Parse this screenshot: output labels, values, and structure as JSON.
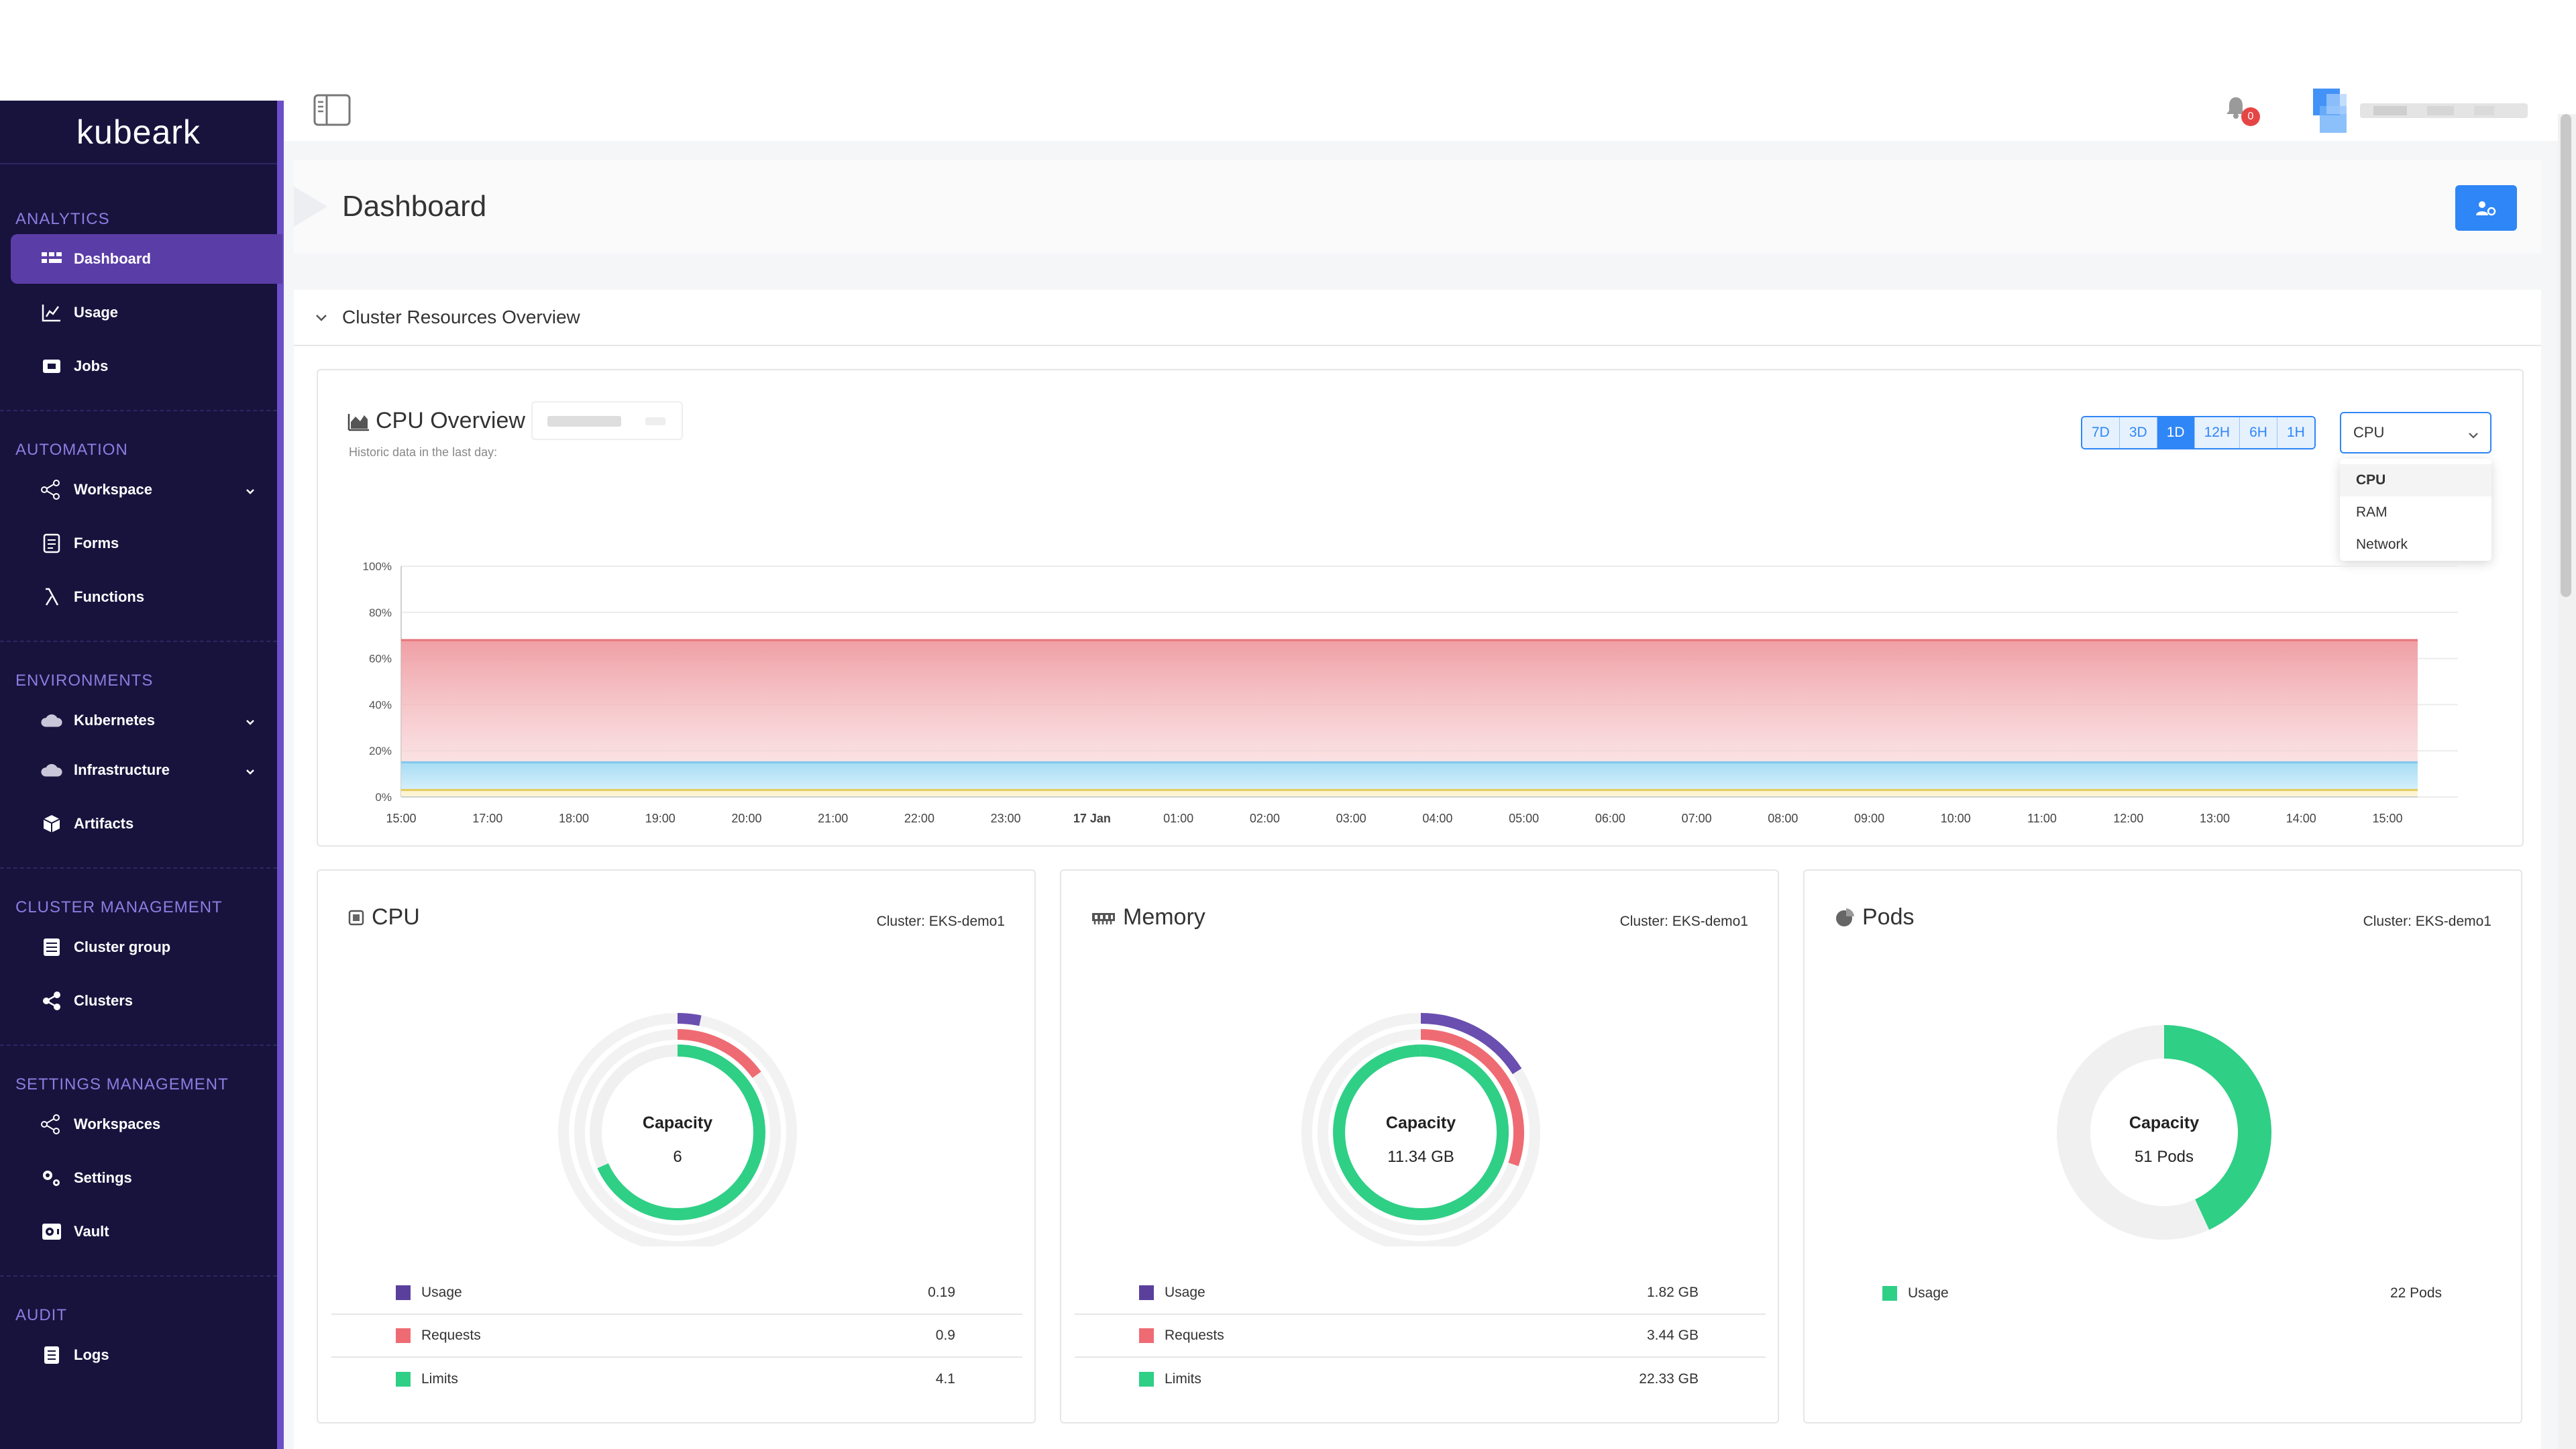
{
  "app": {
    "brand": "kubeark"
  },
  "sidebar": {
    "sections": [
      {
        "title": "ANALYTICS",
        "items": [
          {
            "label": "Dashboard",
            "icon": "dashboard-icon",
            "active": true
          },
          {
            "label": "Usage",
            "icon": "usage-chart-icon"
          },
          {
            "label": "Jobs",
            "icon": "jobs-icon"
          }
        ]
      },
      {
        "title": "AUTOMATION",
        "items": [
          {
            "label": "Workspace",
            "icon": "workspace-icon",
            "expandable": true
          },
          {
            "label": "Forms",
            "icon": "forms-icon"
          },
          {
            "label": "Functions",
            "icon": "lambda-icon"
          }
        ]
      },
      {
        "title": "ENVIRONMENTS",
        "items": [
          {
            "label": "Kubernetes",
            "icon": "cloud-icon",
            "expandable": true
          },
          {
            "label": "Infrastructure",
            "icon": "cloud-icon",
            "expandable": true
          },
          {
            "label": "Artifacts",
            "icon": "box-icon"
          }
        ]
      },
      {
        "title": "CLUSTER MANAGEMENT",
        "items": [
          {
            "label": "Cluster group",
            "icon": "cluster-group-icon"
          },
          {
            "label": "Clusters",
            "icon": "share-nodes-icon"
          }
        ]
      },
      {
        "title": "SETTINGS MANAGEMENT",
        "items": [
          {
            "label": "Workspaces",
            "icon": "workspace-icon"
          },
          {
            "label": "Settings",
            "icon": "gears-icon"
          },
          {
            "label": "Vault",
            "icon": "vault-icon"
          }
        ]
      },
      {
        "title": "AUDIT",
        "items": [
          {
            "label": "Logs",
            "icon": "logs-icon"
          }
        ]
      }
    ]
  },
  "topbar": {
    "notification_count": "0"
  },
  "page": {
    "title": "Dashboard"
  },
  "section": {
    "title": "Cluster Resources Overview"
  },
  "cpu_overview": {
    "title": "CPU Overview",
    "subtitle": "Historic data in the last day:",
    "ranges": [
      "7D",
      "3D",
      "1D",
      "12H",
      "6H",
      "1H"
    ],
    "active_range": "1D",
    "select": {
      "value": "CPU",
      "options": [
        "CPU",
        "RAM",
        "Network"
      ]
    }
  },
  "chart_data": {
    "type": "area",
    "title": "CPU Overview",
    "x": [
      "15:00",
      "17:00",
      "18:00",
      "19:00",
      "20:00",
      "21:00",
      "22:00",
      "23:00",
      "17 Jan",
      "01:00",
      "02:00",
      "03:00",
      "04:00",
      "05:00",
      "06:00",
      "07:00",
      "08:00",
      "09:00",
      "10:00",
      "11:00",
      "12:00",
      "13:00",
      "14:00",
      "15:00"
    ],
    "y_ticks": [
      "0%",
      "20%",
      "40%",
      "60%",
      "80%",
      "100%"
    ],
    "ylim": [
      0,
      100
    ],
    "series": [
      {
        "values": [
          68,
          68,
          68,
          68,
          68,
          68,
          68,
          68,
          68,
          68,
          68,
          68,
          68,
          68,
          68,
          68,
          68,
          68,
          68,
          68,
          68,
          68,
          68,
          68
        ],
        "color": "#e8737b"
      },
      {
        "values": [
          15,
          15,
          15,
          15,
          15,
          15,
          15,
          15,
          15,
          15,
          15,
          15,
          15,
          15,
          15,
          15,
          15,
          15,
          15,
          15,
          15,
          15,
          15,
          15
        ],
        "color": "#7fc8ec"
      },
      {
        "values": [
          3,
          3,
          3,
          3,
          3,
          3,
          3,
          3,
          3,
          3,
          3,
          3,
          3,
          3,
          3,
          3,
          3,
          3,
          3,
          3,
          3,
          3,
          3,
          3
        ],
        "color": "#e6cc5a"
      }
    ]
  },
  "cards": [
    {
      "title": "CPU",
      "icon": "chip-icon",
      "cluster": "Cluster: EKS-demo1",
      "capacity_label": "Capacity",
      "capacity_value": "6",
      "rings": {
        "usage": 0.032,
        "requests": 0.15,
        "limits": 0.683
      },
      "legend": [
        {
          "label": "Usage",
          "value": "0.19",
          "color": "#5b3f9c"
        },
        {
          "label": "Requests",
          "value": "0.9",
          "color": "#ef6b73"
        },
        {
          "label": "Limits",
          "value": "4.1",
          "color": "#2fcf86"
        }
      ]
    },
    {
      "title": "Memory",
      "icon": "memory-icon",
      "cluster": "Cluster: EKS-demo1",
      "capacity_label": "Capacity",
      "capacity_value": "11.34 GB",
      "rings": {
        "usage": 0.16,
        "requests": 0.303,
        "limits": 1.0
      },
      "legend": [
        {
          "label": "Usage",
          "value": "1.82 GB",
          "color": "#5b3f9c"
        },
        {
          "label": "Requests",
          "value": "3.44 GB",
          "color": "#ef6b73"
        },
        {
          "label": "Limits",
          "value": "22.33 GB",
          "color": "#2fcf86"
        }
      ]
    },
    {
      "title": "Pods",
      "icon": "pie-icon",
      "cluster": "Cluster: EKS-demo1",
      "capacity_label": "Capacity",
      "capacity_value": "51 Pods",
      "rings": {
        "usage": 0.431
      },
      "legend": [
        {
          "label": "Usage",
          "value": "22 Pods",
          "color": "#2fcf86"
        }
      ]
    }
  ]
}
